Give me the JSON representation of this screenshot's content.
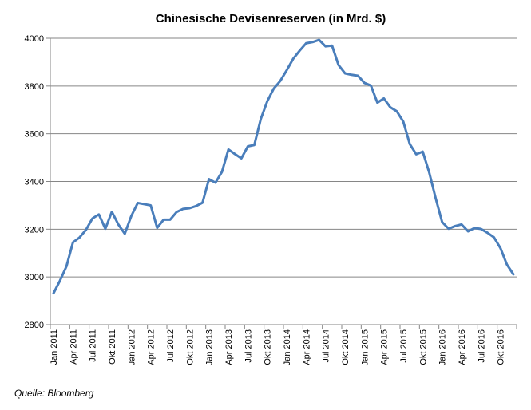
{
  "chart_data": {
    "type": "line",
    "title": "Chinesische Devisenreserven (in Mrd. $)",
    "xlabel": "",
    "ylabel": "",
    "ylim": [
      2800,
      4000
    ],
    "yticks": [
      2800,
      3000,
      3200,
      3400,
      3600,
      3800,
      4000
    ],
    "grid": true,
    "legend": "none",
    "x": [
      "Jan 2011",
      "Feb 2011",
      "Mrz 2011",
      "Apr 2011",
      "Mai 2011",
      "Jun 2011",
      "Jul 2011",
      "Aug 2011",
      "Sep 2011",
      "Okt 2011",
      "Nov 2011",
      "Dez 2011",
      "Jan 2012",
      "Feb 2012",
      "Mrz 2012",
      "Apr 2012",
      "Mai 2012",
      "Jun 2012",
      "Jul 2012",
      "Aug 2012",
      "Sep 2012",
      "Okt 2012",
      "Nov 2012",
      "Dez 2012",
      "Jan 2013",
      "Feb 2013",
      "Mrz 2013",
      "Apr 2013",
      "Mai 2013",
      "Jun 2013",
      "Jul 2013",
      "Aug 2013",
      "Sep 2013",
      "Okt 2013",
      "Nov 2013",
      "Dez 2013",
      "Jan 2014",
      "Feb 2014",
      "Mrz 2014",
      "Apr 2014",
      "Mai 2014",
      "Jun 2014",
      "Jul 2014",
      "Aug 2014",
      "Sep 2014",
      "Okt 2014",
      "Nov 2014",
      "Dez 2014",
      "Jan 2015",
      "Feb 2015",
      "Mrz 2015",
      "Apr 2015",
      "Mai 2015",
      "Jun 2015",
      "Jul 2015",
      "Aug 2015",
      "Sep 2015",
      "Okt 2015",
      "Nov 2015",
      "Dez 2015",
      "Jan 2016",
      "Feb 2016",
      "Mrz 2016",
      "Apr 2016",
      "Mai 2016",
      "Jun 2016",
      "Jul 2016",
      "Aug 2016",
      "Sep 2016",
      "Okt 2016",
      "Nov 2016",
      "Dez 2016"
    ],
    "xtick_labels": [
      "Jan 2011",
      "Apr 2011",
      "Jul 2011",
      "Okt 2011",
      "Jan 2012",
      "Apr 2012",
      "Jul 2012",
      "Okt 2012",
      "Jan 2013",
      "Apr 2013",
      "Jul 2013",
      "Okt 2013",
      "Jan 2014",
      "Apr 2014",
      "Jul 2014",
      "Okt 2014",
      "Jan 2015",
      "Apr 2015",
      "Jul 2015",
      "Okt 2015",
      "Jan 2016",
      "Apr 2016",
      "Jul 2016",
      "Okt 2016"
    ],
    "series": [
      {
        "name": "Devisenreserven",
        "color": "#4a7ebb",
        "values": [
          2932,
          2985,
          3045,
          3145,
          3165,
          3197,
          3245,
          3262,
          3202,
          3273,
          3220,
          3181,
          3255,
          3310,
          3305,
          3300,
          3206,
          3240,
          3240,
          3272,
          3285,
          3288,
          3297,
          3311,
          3410,
          3395,
          3440,
          3534,
          3515,
          3497,
          3547,
          3553,
          3662,
          3736,
          3789,
          3821,
          3866,
          3914,
          3948,
          3979,
          3984,
          3993,
          3966,
          3969,
          3888,
          3853,
          3847,
          3843,
          3813,
          3802,
          3730,
          3748,
          3711,
          3694,
          3651,
          3557,
          3514,
          3525,
          3438,
          3330,
          3230,
          3202,
          3213,
          3220,
          3191,
          3205,
          3201,
          3185,
          3166,
          3121,
          3052,
          3011
        ]
      }
    ]
  },
  "source_note": "Quelle: Bloomberg"
}
